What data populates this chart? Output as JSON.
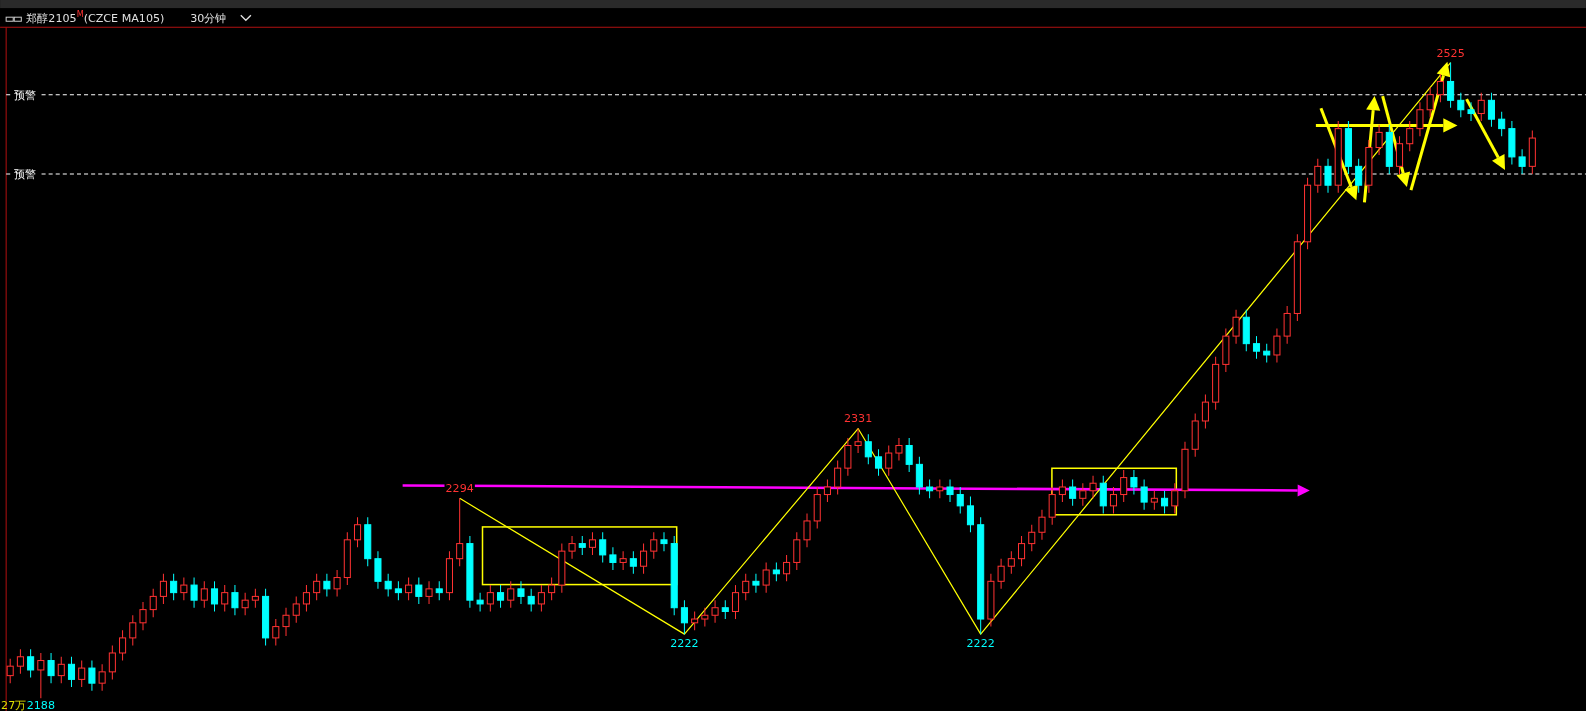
{
  "chart_data": {
    "type": "candlestick",
    "title": "郑醇2105$^{M}$(CZCE MA105)",
    "subtitle": "30分钟",
    "categories": [
      null,
      null,
      null,
      null,
      null,
      null,
      null,
      null,
      null,
      null,
      null,
      null,
      null,
      null,
      null,
      null,
      null,
      null,
      null,
      null,
      null,
      null,
      null,
      null,
      null,
      null,
      null,
      null,
      null,
      null,
      null,
      null,
      null,
      null,
      null,
      null,
      null,
      null,
      null,
      null,
      null,
      null,
      null,
      null,
      null,
      null,
      null,
      null,
      null,
      null,
      null,
      null,
      null,
      null,
      null,
      null,
      null,
      null,
      null,
      null,
      null,
      null,
      null,
      null,
      null,
      null,
      null,
      null,
      null,
      null,
      null,
      null,
      null,
      null,
      null,
      null,
      null,
      null,
      null,
      null,
      null,
      null,
      null,
      null,
      null,
      null,
      null,
      null,
      null,
      null,
      null,
      null,
      null,
      null,
      null,
      null,
      null,
      null,
      null,
      null,
      null,
      null,
      null,
      null,
      null,
      null,
      null,
      null,
      null,
      null,
      null,
      null,
      null,
      null,
      null,
      null,
      null,
      null,
      null,
      null,
      null,
      null,
      null,
      null,
      null,
      null,
      null,
      null,
      null,
      null,
      null,
      null,
      null,
      null,
      null,
      null,
      null,
      null,
      null,
      null,
      null,
      null,
      null,
      null,
      null,
      null,
      null,
      null,
      null,
      null
    ],
    "ohlc": [
      [
        2200,
        2209,
        2196,
        2205
      ],
      [
        2205,
        2214,
        2201,
        2210
      ],
      [
        2210,
        2214,
        2199,
        2203
      ],
      [
        2203,
        2212,
        2188,
        2208
      ],
      [
        2208,
        2212,
        2196,
        2200
      ],
      [
        2200,
        2210,
        2196,
        2206
      ],
      [
        2206,
        2210,
        2194,
        2198
      ],
      [
        2198,
        2208,
        2194,
        2204
      ],
      [
        2204,
        2208,
        2192,
        2196
      ],
      [
        2196,
        2206,
        2192,
        2202
      ],
      [
        2202,
        2216,
        2198,
        2212
      ],
      [
        2212,
        2224,
        2208,
        2220
      ],
      [
        2220,
        2232,
        2216,
        2228
      ],
      [
        2228,
        2239,
        2224,
        2235
      ],
      [
        2235,
        2246,
        2231,
        2242
      ],
      [
        2242,
        2254,
        2238,
        2250
      ],
      [
        2250,
        2254,
        2240,
        2244
      ],
      [
        2244,
        2252,
        2240,
        2248
      ],
      [
        2248,
        2252,
        2236,
        2240
      ],
      [
        2240,
        2250,
        2236,
        2246
      ],
      [
        2246,
        2250,
        2234,
        2238
      ],
      [
        2238,
        2248,
        2234,
        2244
      ],
      [
        2244,
        2248,
        2232,
        2236
      ],
      [
        2236,
        2244,
        2232,
        2240
      ],
      [
        2240,
        2246,
        2236,
        2242
      ],
      [
        2242,
        2246,
        2216,
        2220
      ],
      [
        2220,
        2230,
        2216,
        2226
      ],
      [
        2226,
        2236,
        2221,
        2232
      ],
      [
        2232,
        2242,
        2228,
        2238
      ],
      [
        2238,
        2248,
        2234,
        2244
      ],
      [
        2244,
        2254,
        2240,
        2250
      ],
      [
        2250,
        2254,
        2242,
        2246
      ],
      [
        2246,
        2256,
        2242,
        2252
      ],
      [
        2252,
        2276,
        2248,
        2272
      ],
      [
        2272,
        2284,
        2268,
        2280
      ],
      [
        2280,
        2284,
        2258,
        2262
      ],
      [
        2262,
        2266,
        2246,
        2250
      ],
      [
        2250,
        2254,
        2242,
        2246
      ],
      [
        2246,
        2250,
        2240,
        2244
      ],
      [
        2244,
        2252,
        2240,
        2248
      ],
      [
        2248,
        2252,
        2238,
        2242
      ],
      [
        2242,
        2250,
        2238,
        2246
      ],
      [
        2246,
        2250,
        2240,
        2244
      ],
      [
        2244,
        2266,
        2240,
        2262
      ],
      [
        2262,
        2294,
        2258,
        2270
      ],
      [
        2270,
        2274,
        2236,
        2240
      ],
      [
        2240,
        2244,
        2234,
        2238
      ],
      [
        2238,
        2248,
        2234,
        2244
      ],
      [
        2244,
        2248,
        2236,
        2240
      ],
      [
        2240,
        2250,
        2236,
        2246
      ],
      [
        2246,
        2250,
        2238,
        2242
      ],
      [
        2242,
        2246,
        2234,
        2238
      ],
      [
        2238,
        2248,
        2234,
        2244
      ],
      [
        2244,
        2252,
        2240,
        2248
      ],
      [
        2248,
        2270,
        2244,
        2266
      ],
      [
        2266,
        2274,
        2262,
        2270
      ],
      [
        2270,
        2274,
        2264,
        2268
      ],
      [
        2268,
        2276,
        2264,
        2272
      ],
      [
        2272,
        2276,
        2260,
        2264
      ],
      [
        2264,
        2268,
        2256,
        2260
      ],
      [
        2260,
        2266,
        2256,
        2262
      ],
      [
        2262,
        2266,
        2254,
        2258
      ],
      [
        2258,
        2270,
        2254,
        2266
      ],
      [
        2266,
        2276,
        2262,
        2272
      ],
      [
        2272,
        2276,
        2266,
        2270
      ],
      [
        2270,
        2274,
        2232,
        2236
      ],
      [
        2236,
        2240,
        2222,
        2228
      ],
      [
        2228,
        2234,
        2224,
        2230
      ],
      [
        2230,
        2236,
        2226,
        2232
      ],
      [
        2232,
        2240,
        2228,
        2236
      ],
      [
        2236,
        2240,
        2230,
        2234
      ],
      [
        2234,
        2248,
        2230,
        2244
      ],
      [
        2244,
        2254,
        2240,
        2250
      ],
      [
        2250,
        2254,
        2244,
        2248
      ],
      [
        2248,
        2260,
        2244,
        2256
      ],
      [
        2256,
        2260,
        2250,
        2254
      ],
      [
        2254,
        2264,
        2250,
        2260
      ],
      [
        2260,
        2276,
        2256,
        2272
      ],
      [
        2272,
        2286,
        2268,
        2282
      ],
      [
        2282,
        2300,
        2278,
        2296
      ],
      [
        2296,
        2304,
        2292,
        2300
      ],
      [
        2300,
        2314,
        2296,
        2310
      ],
      [
        2310,
        2326,
        2306,
        2322
      ],
      [
        2322,
        2331,
        2318,
        2324
      ],
      [
        2324,
        2328,
        2312,
        2316
      ],
      [
        2316,
        2320,
        2306,
        2310
      ],
      [
        2310,
        2322,
        2306,
        2318
      ],
      [
        2318,
        2326,
        2314,
        2322
      ],
      [
        2322,
        2326,
        2308,
        2312
      ],
      [
        2312,
        2316,
        2296,
        2300
      ],
      [
        2300,
        2304,
        2294,
        2298
      ],
      [
        2298,
        2304,
        2294,
        2300
      ],
      [
        2300,
        2304,
        2292,
        2296
      ],
      [
        2296,
        2300,
        2286,
        2290
      ],
      [
        2290,
        2295,
        2276,
        2280
      ],
      [
        2280,
        2284,
        2222,
        2230
      ],
      [
        2230,
        2254,
        2226,
        2250
      ],
      [
        2250,
        2262,
        2246,
        2258
      ],
      [
        2258,
        2266,
        2254,
        2262
      ],
      [
        2262,
        2274,
        2258,
        2270
      ],
      [
        2270,
        2280,
        2266,
        2276
      ],
      [
        2276,
        2288,
        2272,
        2284
      ],
      [
        2284,
        2300,
        2280,
        2296
      ],
      [
        2296,
        2304,
        2292,
        2300
      ],
      [
        2300,
        2304,
        2290,
        2294
      ],
      [
        2294,
        2302,
        2290,
        2298
      ],
      [
        2298,
        2306,
        2294,
        2302
      ],
      [
        2302,
        2306,
        2286,
        2290
      ],
      [
        2290,
        2300,
        2286,
        2296
      ],
      [
        2296,
        2309,
        2292,
        2305
      ],
      [
        2305,
        2309,
        2296,
        2300
      ],
      [
        2300,
        2304,
        2288,
        2292
      ],
      [
        2292,
        2298,
        2288,
        2294
      ],
      [
        2294,
        2298,
        2286,
        2290
      ],
      [
        2290,
        2302,
        2286,
        2298
      ],
      [
        2298,
        2324,
        2294,
        2320
      ],
      [
        2320,
        2339,
        2316,
        2335
      ],
      [
        2335,
        2349,
        2331,
        2345
      ],
      [
        2345,
        2369,
        2341,
        2365
      ],
      [
        2365,
        2384,
        2361,
        2380
      ],
      [
        2380,
        2394,
        2376,
        2390
      ],
      [
        2390,
        2394,
        2372,
        2376
      ],
      [
        2376,
        2380,
        2368,
        2372
      ],
      [
        2372,
        2376,
        2366,
        2370
      ],
      [
        2370,
        2384,
        2366,
        2380
      ],
      [
        2380,
        2396,
        2376,
        2392
      ],
      [
        2392,
        2434,
        2388,
        2430
      ],
      [
        2430,
        2464,
        2426,
        2460
      ],
      [
        2460,
        2474,
        2456,
        2470
      ],
      [
        2470,
        2474,
        2456,
        2460
      ],
      [
        2460,
        2494,
        2456,
        2490
      ],
      [
        2490,
        2494,
        2466,
        2470
      ],
      [
        2470,
        2474,
        2456,
        2460
      ],
      [
        2460,
        2484,
        2456,
        2480
      ],
      [
        2480,
        2492,
        2476,
        2488
      ],
      [
        2488,
        2492,
        2466,
        2470
      ],
      [
        2470,
        2486,
        2466,
        2482
      ],
      [
        2482,
        2494,
        2478,
        2490
      ],
      [
        2490,
        2504,
        2486,
        2500
      ],
      [
        2500,
        2512,
        2496,
        2508
      ],
      [
        2508,
        2519,
        2504,
        2515
      ],
      [
        2515,
        2525,
        2501,
        2505
      ],
      [
        2505,
        2509,
        2496,
        2500
      ],
      [
        2500,
        2504,
        2494,
        2498
      ],
      [
        2498,
        2509,
        2494,
        2505
      ],
      [
        2505,
        2509,
        2491,
        2495
      ],
      [
        2495,
        2499,
        2486,
        2490
      ],
      [
        2490,
        2494,
        2471,
        2475
      ],
      [
        2475,
        2479,
        2466,
        2470
      ],
      [
        2470,
        2489,
        2466,
        2485
      ]
    ],
    "colors": [
      "#ff3232",
      "#ff3232",
      "#00ffff",
      "#ff3232",
      "#00ffff",
      "#ff3232",
      "#00ffff",
      "#ff3232",
      "#00ffff",
      "#ff3232",
      "#ff3232",
      "#ff3232",
      "#ff3232",
      "#ff3232",
      "#ff3232",
      "#ff3232",
      "#00ffff",
      "#ff3232",
      "#00ffff",
      "#ff3232",
      "#00ffff",
      "#ff3232",
      "#00ffff",
      "#ff3232",
      "#ff3232",
      "#00ffff",
      "#ff3232",
      "#ff3232",
      "#ff3232",
      "#ff3232",
      "#ff3232",
      "#00ffff",
      "#ff3232",
      "#ff3232",
      "#ff3232",
      "#00ffff",
      "#00ffff",
      "#00ffff",
      "#00ffff",
      "#ff3232",
      "#00ffff",
      "#ff3232",
      "#00ffff",
      "#ff3232",
      "#ff3232",
      "#00ffff",
      "#00ffff",
      "#ff3232",
      "#00ffff",
      "#ff3232",
      "#00ffff",
      "#00ffff",
      "#ff3232",
      "#ff3232",
      "#ff3232",
      "#ff3232",
      "#00ffff",
      "#ff3232",
      "#00ffff",
      "#00ffff",
      "#ff3232",
      "#00ffff",
      "#ff3232",
      "#ff3232",
      "#00ffff",
      "#00ffff",
      "#00ffff",
      "#ff3232",
      "#ff3232",
      "#ff3232",
      "#00ffff",
      "#ff3232",
      "#ff3232",
      "#00ffff",
      "#ff3232",
      "#00ffff",
      "#ff3232",
      "#ff3232",
      "#ff3232",
      "#ff3232",
      "#ff3232",
      "#ff3232",
      "#ff3232",
      "#ff3232",
      "#00ffff",
      "#00ffff",
      "#ff3232",
      "#ff3232",
      "#00ffff",
      "#00ffff",
      "#00ffff",
      "#ff3232",
      "#00ffff",
      "#00ffff",
      "#00ffff",
      "#00ffff",
      "#ff3232",
      "#ff3232",
      "#ff3232",
      "#ff3232",
      "#ff3232",
      "#ff3232",
      "#ff3232",
      "#ff3232",
      "#00ffff",
      "#ff3232",
      "#ff3232",
      "#00ffff",
      "#ff3232",
      "#ff3232",
      "#00ffff",
      "#00ffff",
      "#ff3232",
      "#00ffff",
      "#ff3232",
      "#ff3232",
      "#ff3232",
      "#ff3232",
      "#ff3232",
      "#ff3232",
      "#ff3232",
      "#00ffff",
      "#00ffff",
      "#00ffff",
      "#ff3232",
      "#ff3232",
      "#ff3232",
      "#ff3232",
      "#ff3232",
      "#00ffff",
      "#ff3232",
      "#00ffff",
      "#00ffff",
      "#ff3232",
      "#ff3232",
      "#00ffff",
      "#ff3232",
      "#ff3232",
      "#ff3232",
      "#ff3232",
      "#ff3232",
      "#00ffff",
      "#00ffff",
      "#00ffff",
      "#ff3232",
      "#00ffff",
      "#00ffff",
      "#00ffff",
      "#00ffff",
      "#ff3232"
    ],
    "series": [
      {
        "type": "line",
        "color": "#ffff00",
        "values": [
          null,
          null,
          null,
          null,
          null,
          null,
          null,
          null,
          null,
          null,
          null,
          null,
          null,
          null,
          null,
          null,
          null,
          null,
          null,
          null,
          null,
          null,
          null,
          null,
          null,
          null,
          null,
          null,
          null,
          null,
          null,
          null,
          null,
          null,
          null,
          null,
          null,
          null,
          null,
          null,
          null,
          null,
          null,
          null,
          2294,
          null,
          null,
          null,
          null,
          null,
          null,
          null,
          null,
          null,
          null,
          null,
          null,
          null,
          null,
          null,
          null,
          null,
          null,
          null,
          null,
          null,
          2222,
          null,
          null,
          null,
          null,
          null,
          null,
          null,
          null,
          null,
          null,
          null,
          null,
          null,
          null,
          null,
          null,
          2331,
          null,
          null,
          null,
          null,
          null,
          null,
          null,
          null,
          null,
          null,
          null,
          2222,
          null,
          null,
          null,
          null,
          null,
          null,
          null,
          null,
          null,
          null,
          null,
          null,
          null,
          null,
          null,
          null,
          null,
          null,
          null,
          null,
          null,
          null,
          null,
          null,
          null,
          null,
          null,
          null,
          null,
          null,
          null,
          null,
          null,
          null,
          null,
          null,
          null,
          null,
          null,
          null,
          null,
          null,
          null,
          null,
          null,
          2525,
          null,
          null,
          null,
          null,
          null,
          null,
          null,
          null
        ]
      }
    ],
    "ref_lines": [
      {
        "axis": "y",
        "value": 2508,
        "label": "预警",
        "color": "#ffffff",
        "line_style": "dashed"
      },
      {
        "axis": "y",
        "value": 2466,
        "label": "预警",
        "color": "#ffffff",
        "line_style": "dashed"
      }
    ],
    "annotations": [
      {
        "text": "2188",
        "y": 2188
      },
      {
        "text": "2294",
        "y": 2294
      },
      {
        "text": "2222",
        "y": 2222
      },
      {
        "text": "2331",
        "y": 2331
      },
      {
        "text": "2222",
        "y": 2222
      },
      {
        "text": "2525",
        "y": 2525
      },
      "27万"
    ]
  }
}
